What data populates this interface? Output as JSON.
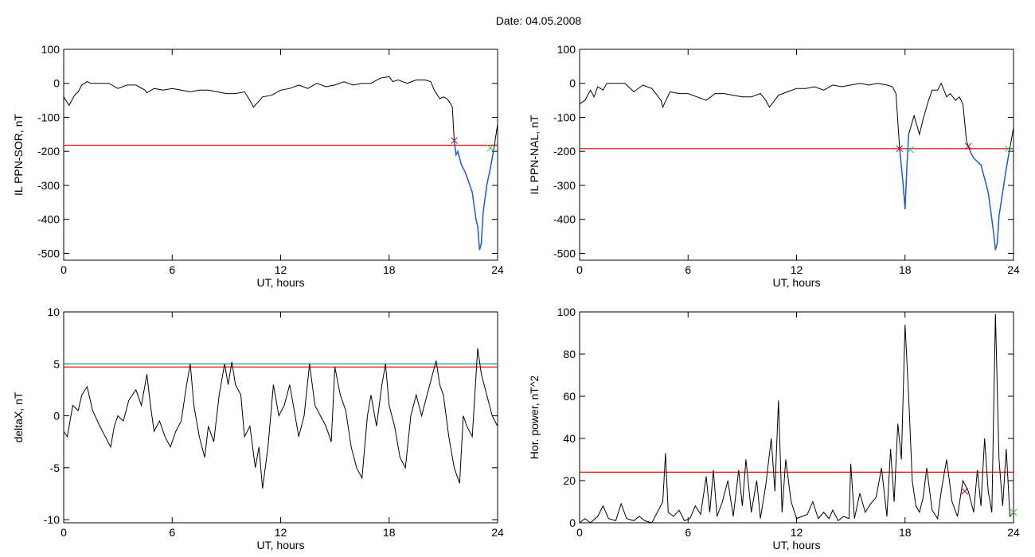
{
  "page": {
    "title": "Date:  04.05.2008"
  },
  "colors": {
    "trace": "#000000",
    "threshold": "#e00000",
    "threshold2": "#1f9b9b",
    "highlight": "#1f5fd0",
    "start_marker": "#c00030",
    "end_marker": "#40c040"
  },
  "chart_data": [
    {
      "id": "il-ppn-sor",
      "type": "line",
      "xlabel": "UT, hours",
      "ylabel": "IL PPN-SOR, nT",
      "xlim": [
        0,
        24
      ],
      "ylim": [
        -520,
        100
      ],
      "xticks": [
        0,
        6,
        12,
        18,
        24
      ],
      "yticks": [
        100,
        0,
        -100,
        -200,
        -300,
        -400,
        -500
      ],
      "threshold": -182,
      "highlight_range": [
        21.6,
        23.8
      ],
      "markers": [
        {
          "x": 21.6,
          "y": -168,
          "kind": "start"
        },
        {
          "x": 23.6,
          "y": -190,
          "kind": "end"
        }
      ],
      "series": [
        {
          "x": [
            0,
            0.3,
            0.6,
            0.8,
            1,
            1.3,
            1.5,
            2,
            2.5,
            3,
            3.5,
            4,
            4.5,
            4.6,
            5,
            5.5,
            6,
            6.5,
            7,
            7.5,
            8,
            8.5,
            9,
            9.5,
            10,
            10.3,
            10.5,
            11,
            11.5,
            12,
            12.5,
            13,
            13.5,
            14,
            14.5,
            15,
            15.5,
            16,
            16.5,
            17,
            17.5,
            18,
            18.2,
            18.5,
            19,
            19.5,
            20,
            20.3,
            20.5,
            20.8,
            21,
            21.2,
            21.4,
            21.5,
            21.6,
            21.7,
            21.8,
            22,
            22.2,
            22.4,
            22.6,
            22.8,
            22.9,
            23,
            23.1,
            23.2,
            23.4,
            23.6,
            23.8,
            24
          ],
          "y": [
            -40,
            -65,
            -35,
            -25,
            -5,
            5,
            0,
            0,
            0,
            -15,
            -5,
            -5,
            -20,
            -28,
            -15,
            -20,
            -15,
            -20,
            -25,
            -20,
            -20,
            -25,
            -30,
            -30,
            -25,
            -50,
            -70,
            -40,
            -35,
            -20,
            -15,
            -5,
            -15,
            0,
            -10,
            -5,
            5,
            -5,
            0,
            0,
            15,
            20,
            5,
            10,
            0,
            10,
            10,
            5,
            -20,
            -45,
            -40,
            -45,
            -60,
            -70,
            -170,
            -210,
            -200,
            -240,
            -260,
            -290,
            -320,
            -400,
            -420,
            -490,
            -470,
            -380,
            -300,
            -250,
            -190,
            -120
          ]
        }
      ]
    },
    {
      "id": "il-ppn-nal",
      "type": "line",
      "xlabel": "UT, hours",
      "ylabel": "IL PPN-NAL, nT",
      "xlim": [
        0,
        24
      ],
      "ylim": [
        -520,
        100
      ],
      "xticks": [
        0,
        6,
        12,
        18,
        24
      ],
      "yticks": [
        100,
        0,
        -100,
        -200,
        -300,
        -400,
        -500
      ],
      "threshold": -192,
      "highlight_range": [
        17.7,
        18.2,
        21.6,
        23.8
      ],
      "markers": [
        {
          "x": 17.7,
          "y": -192,
          "kind": "start"
        },
        {
          "x": 18.3,
          "y": -195,
          "kind": "end"
        },
        {
          "x": 21.5,
          "y": -185,
          "kind": "start"
        },
        {
          "x": 23.7,
          "y": -192,
          "kind": "end"
        }
      ],
      "series": [
        {
          "x": [
            0,
            0.3,
            0.6,
            0.8,
            1,
            1.3,
            1.5,
            2,
            2.5,
            3,
            3.5,
            4,
            4.5,
            4.6,
            5,
            5.5,
            6,
            6.5,
            7,
            7.5,
            8,
            8.5,
            9,
            9.5,
            10,
            10.3,
            10.5,
            11,
            11.5,
            12,
            12.5,
            13,
            13.5,
            14,
            14.5,
            15,
            15.5,
            16,
            16.5,
            17,
            17.3,
            17.5,
            17.7,
            17.9,
            18,
            18.1,
            18.2,
            18.5,
            18.8,
            19,
            19.3,
            19.5,
            19.8,
            20,
            20.3,
            20.5,
            20.8,
            21,
            21.2,
            21.4,
            21.6,
            21.8,
            22,
            22.2,
            22.4,
            22.6,
            22.8,
            22.9,
            23,
            23.1,
            23.2,
            23.4,
            23.6,
            23.8,
            24
          ],
          "y": [
            -60,
            -50,
            -20,
            -40,
            -10,
            -20,
            0,
            0,
            0,
            -25,
            -5,
            -15,
            -50,
            -70,
            -25,
            -30,
            -30,
            -40,
            -50,
            -30,
            -30,
            -35,
            -40,
            -40,
            -30,
            -50,
            -70,
            -35,
            -25,
            -15,
            -15,
            -10,
            -20,
            -5,
            -10,
            -5,
            0,
            -5,
            0,
            -5,
            -10,
            -30,
            -190,
            -300,
            -370,
            -250,
            -150,
            -95,
            -150,
            -105,
            -50,
            -20,
            -20,
            0,
            -40,
            -30,
            -50,
            -40,
            -60,
            -170,
            -200,
            -220,
            -230,
            -240,
            -280,
            -320,
            -400,
            -440,
            -490,
            -470,
            -390,
            -320,
            -250,
            -190,
            -130
          ]
        }
      ]
    },
    {
      "id": "deltax",
      "type": "line",
      "xlabel": "UT, hours",
      "ylabel": "deltaX, nT",
      "xlim": [
        0,
        24
      ],
      "ylim": [
        -10.3,
        10
      ],
      "xticks": [
        0,
        6,
        12,
        18,
        24
      ],
      "yticks": [
        10,
        5,
        0,
        -5,
        -10
      ],
      "threshold": 4.7,
      "threshold2": 5.0,
      "markers": [],
      "series": [
        {
          "x": [
            0,
            0.2,
            0.5,
            0.8,
            1,
            1.3,
            1.6,
            2,
            2.3,
            2.6,
            2.8,
            3,
            3.3,
            3.6,
            4,
            4.3,
            4.6,
            4.8,
            5,
            5.3,
            5.6,
            5.9,
            6.2,
            6.5,
            6.8,
            7,
            7.2,
            7.5,
            7.8,
            8,
            8.3,
            8.6,
            8.9,
            9.1,
            9.3,
            9.5,
            9.8,
            10,
            10.3,
            10.6,
            10.8,
            11,
            11.3,
            11.6,
            11.9,
            12.2,
            12.5,
            12.8,
            13,
            13.3,
            13.6,
            13.9,
            14.2,
            14.5,
            14.8,
            15,
            15.3,
            15.6,
            15.9,
            16.2,
            16.5,
            16.8,
            17,
            17.3,
            17.6,
            17.8,
            18,
            18.3,
            18.6,
            18.9,
            19.2,
            19.5,
            19.8,
            20.1,
            20.4,
            20.6,
            20.8,
            21,
            21.3,
            21.6,
            21.9,
            22.1,
            22.3,
            22.6,
            22.9,
            23.1,
            23.4,
            23.7,
            24
          ],
          "y": [
            -1.5,
            -2,
            1,
            0.5,
            2,
            2.8,
            0.5,
            -1,
            -2,
            -3,
            -1,
            0,
            -0.5,
            1.5,
            2.5,
            1,
            4,
            1,
            -1.5,
            -0.5,
            -2,
            -3,
            -1.5,
            -0.5,
            3,
            5,
            1,
            -2,
            -4,
            -1,
            -2.5,
            2,
            5,
            3,
            5.2,
            3,
            2,
            -2,
            -1,
            -5,
            -3,
            -7,
            -3,
            3,
            0,
            1,
            3,
            0,
            -2,
            0,
            5,
            1,
            0,
            -1,
            -2.5,
            4.7,
            2,
            0.5,
            -3,
            -5,
            -6,
            0,
            2,
            -1,
            3,
            5,
            1,
            -1,
            -4,
            -5,
            0,
            2,
            0,
            2,
            4,
            5.3,
            3,
            2,
            -2,
            -5,
            -6.5,
            0,
            -1,
            -2,
            6.5,
            4,
            2,
            0,
            -1
          ]
        }
      ]
    },
    {
      "id": "hor-power",
      "type": "line",
      "xlabel": "UT, hours",
      "ylabel": "Hor. power, nT^2",
      "xlim": [
        0,
        24
      ],
      "ylim": [
        0,
        100
      ],
      "xticks": [
        0,
        6,
        12,
        18,
        24
      ],
      "yticks": [
        100,
        80,
        60,
        40,
        20,
        0
      ],
      "threshold": 24,
      "markers": [
        {
          "x": 21.3,
          "y": 15,
          "kind": "start"
        },
        {
          "x": 24,
          "y": 5,
          "kind": "end"
        }
      ],
      "series": [
        {
          "x": [
            0,
            0.3,
            0.6,
            1,
            1.3,
            1.6,
            2,
            2.3,
            2.6,
            3,
            3.3,
            3.6,
            4,
            4.3,
            4.6,
            4.75,
            4.9,
            5.2,
            5.5,
            5.8,
            6.1,
            6.4,
            6.7,
            7,
            7.2,
            7.4,
            7.6,
            7.9,
            8.2,
            8.5,
            8.8,
            9,
            9.2,
            9.5,
            9.8,
            10,
            10.3,
            10.6,
            10.8,
            11,
            11.2,
            11.4,
            11.7,
            12,
            12.3,
            12.6,
            12.9,
            13.2,
            13.5,
            13.8,
            14,
            14.3,
            14.6,
            14.9,
            15,
            15.2,
            15.5,
            15.8,
            16.1,
            16.4,
            16.7,
            17,
            17.2,
            17.4,
            17.6,
            17.8,
            18,
            18.2,
            18.4,
            18.6,
            18.8,
            19,
            19.2,
            19.5,
            19.8,
            20,
            20.3,
            20.6,
            20.9,
            21.2,
            21.5,
            21.8,
            22,
            22.2,
            22.4,
            22.6,
            22.8,
            23,
            23.2,
            23.4,
            23.6,
            23.8,
            24
          ],
          "y": [
            0,
            2,
            0,
            3,
            8,
            2,
            1,
            9,
            2,
            1,
            3,
            1,
            0,
            5,
            10,
            33,
            5,
            3,
            6,
            1,
            2,
            8,
            4,
            22,
            5,
            25,
            3,
            10,
            20,
            3,
            25,
            8,
            30,
            5,
            20,
            2,
            18,
            40,
            15,
            58,
            5,
            30,
            10,
            2,
            3,
            4,
            10,
            2,
            5,
            2,
            6,
            1,
            3,
            2,
            28,
            2,
            14,
            5,
            9,
            12,
            26,
            3,
            35,
            10,
            47,
            30,
            94,
            60,
            20,
            8,
            5,
            12,
            26,
            6,
            2,
            15,
            30,
            10,
            3,
            20,
            15,
            5,
            25,
            8,
            40,
            15,
            5,
            99,
            30,
            8,
            35,
            3,
            5
          ]
        }
      ]
    }
  ]
}
